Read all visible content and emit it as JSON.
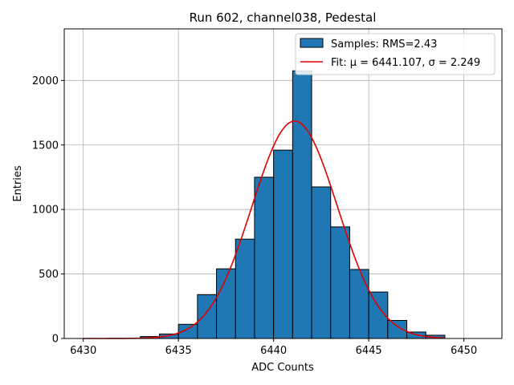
{
  "chart_data": {
    "type": "bar",
    "title": "Run 602, channel038, Pedestal",
    "xlabel": "ADC Counts",
    "ylabel": "Entries",
    "xlim": [
      6429,
      6452
    ],
    "ylim": [
      0,
      2400
    ],
    "xticks": [
      6430,
      6435,
      6440,
      6445,
      6450
    ],
    "yticks": [
      0,
      500,
      1000,
      1500,
      2000
    ],
    "grid": true,
    "legend_position": "top-right",
    "bin_width": 1,
    "bins": [
      {
        "left": 6433,
        "count": 15
      },
      {
        "left": 6434,
        "count": 35
      },
      {
        "left": 6435,
        "count": 110
      },
      {
        "left": 6436,
        "count": 340
      },
      {
        "left": 6437,
        "count": 540
      },
      {
        "left": 6438,
        "count": 770
      },
      {
        "left": 6439,
        "count": 1250
      },
      {
        "left": 6440,
        "count": 1460
      },
      {
        "left": 6441,
        "count": 2075
      },
      {
        "left": 6442,
        "count": 1175
      },
      {
        "left": 6443,
        "count": 865
      },
      {
        "left": 6444,
        "count": 535
      },
      {
        "left": 6445,
        "count": 360
      },
      {
        "left": 6446,
        "count": 140
      },
      {
        "left": 6447,
        "count": 50
      },
      {
        "left": 6448,
        "count": 25
      }
    ],
    "fit": {
      "mu": 6441.107,
      "sigma": 2.249,
      "peak": 1685,
      "x_range": [
        6430,
        6449
      ]
    },
    "series": [
      {
        "name": "Samples: RMS=2.43",
        "kind": "histogram",
        "color": "#1f77b4"
      },
      {
        "name": "Fit: μ = 6441.107, σ = 2.249",
        "kind": "line",
        "color": "#e00000"
      }
    ]
  }
}
